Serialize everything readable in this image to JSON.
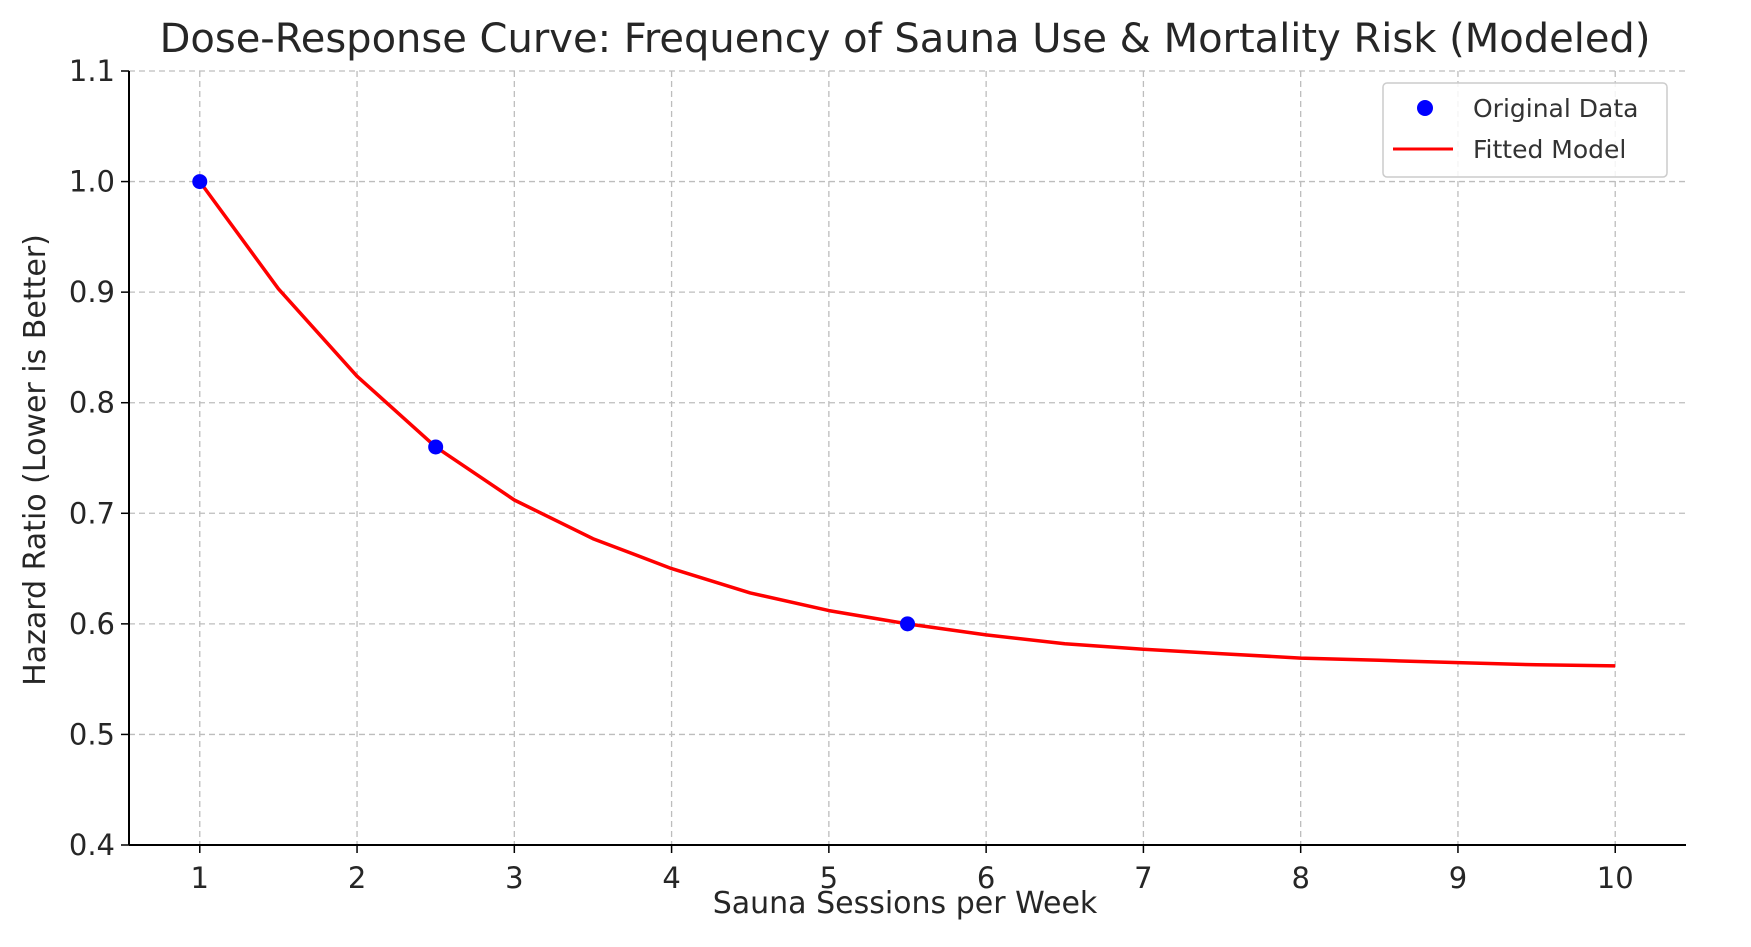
{
  "chart_data": {
    "type": "line",
    "title": "Dose-Response Curve: Frequency of Sauna Use & Mortality Risk (Modeled)",
    "xlabel": "Sauna Sessions per Week",
    "ylabel": "Hazard Ratio (Lower is Better)",
    "xlim": [
      0.55,
      10.45
    ],
    "ylim": [
      0.4,
      1.1
    ],
    "xticks": [
      1,
      2,
      3,
      4,
      5,
      6,
      7,
      8,
      9,
      10
    ],
    "yticks": [
      0.4,
      0.5,
      0.6,
      0.7,
      0.8,
      0.9,
      1.0,
      1.1
    ],
    "xtick_labels": [
      "1",
      "2",
      "3",
      "4",
      "5",
      "6",
      "7",
      "8",
      "9",
      "10"
    ],
    "ytick_labels": [
      "0.4",
      "0.5",
      "0.6",
      "0.7",
      "0.8",
      "0.9",
      "1.0",
      "1.1"
    ],
    "grid": true,
    "legend_position": "top-right",
    "series": [
      {
        "name": "Original Data",
        "kind": "scatter",
        "color": "#0000ff",
        "x": [
          1,
          2.5,
          5.5
        ],
        "y": [
          1.0,
          0.76,
          0.6
        ]
      },
      {
        "name": "Fitted Model",
        "kind": "line",
        "color": "#ff0000",
        "x": [
          1,
          1.5,
          2,
          2.5,
          3,
          3.5,
          4,
          4.5,
          5,
          5.5,
          6,
          6.5,
          7,
          7.5,
          8,
          8.5,
          9,
          9.5,
          10
        ],
        "y": [
          1.0,
          0.903,
          0.824,
          0.76,
          0.712,
          0.677,
          0.65,
          0.628,
          0.612,
          0.6,
          0.59,
          0.582,
          0.577,
          0.573,
          0.569,
          0.567,
          0.565,
          0.563,
          0.562
        ]
      }
    ]
  }
}
